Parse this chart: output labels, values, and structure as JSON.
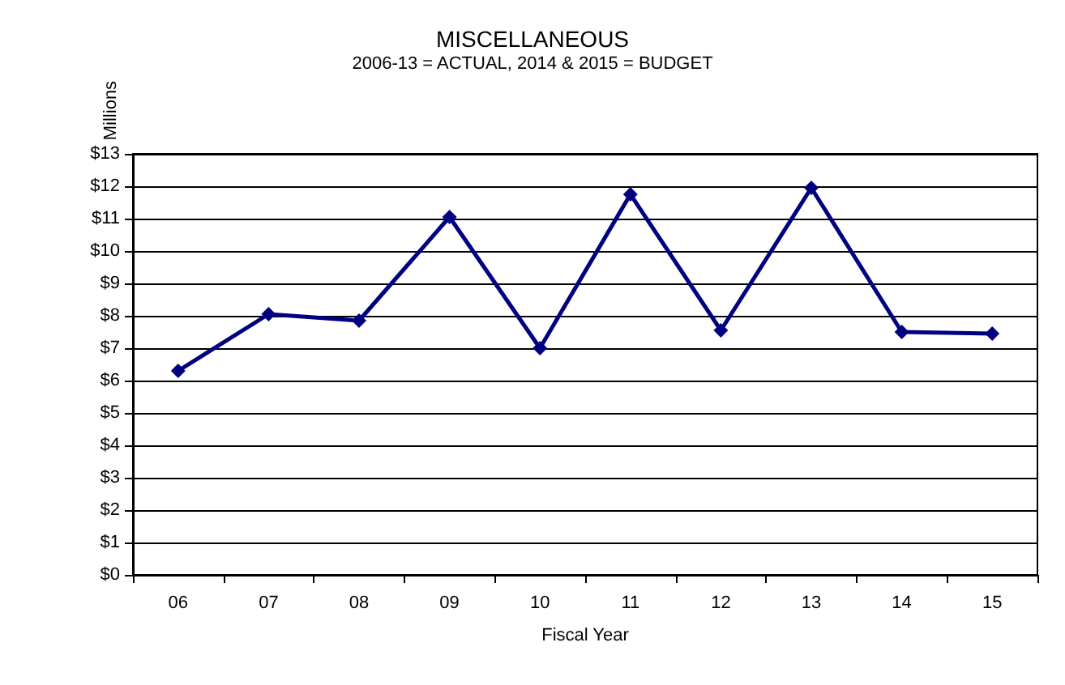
{
  "chart_data": {
    "type": "line",
    "title": "MISCELLANEOUS",
    "subtitle": "2006-13 = ACTUAL, 2014 & 2015 = BUDGET",
    "xlabel": "Fiscal Year",
    "ylabel": "Millions",
    "categories": [
      "06",
      "07",
      "08",
      "09",
      "10",
      "11",
      "12",
      "13",
      "14",
      "15"
    ],
    "series": [
      {
        "color": "#000080",
        "values": [
          6.3,
          8.05,
          7.85,
          11.05,
          7.0,
          11.75,
          7.55,
          11.95,
          7.5,
          7.45
        ]
      }
    ],
    "ylim": [
      0,
      13
    ],
    "yticks": [
      {
        "value": 0,
        "label": "$0"
      },
      {
        "value": 1,
        "label": "$1"
      },
      {
        "value": 2,
        "label": "$2"
      },
      {
        "value": 3,
        "label": "$3"
      },
      {
        "value": 4,
        "label": "$4"
      },
      {
        "value": 5,
        "label": "$5"
      },
      {
        "value": 6,
        "label": "$6"
      },
      {
        "value": 7,
        "label": "$7"
      },
      {
        "value": 8,
        "label": "$8"
      },
      {
        "value": 9,
        "label": "$9"
      },
      {
        "value": 10,
        "label": "$10"
      },
      {
        "value": 11,
        "label": "$11"
      },
      {
        "value": 12,
        "label": "$12"
      },
      {
        "value": 13,
        "label": "$13"
      }
    ],
    "grid": "y",
    "marker": "diamond",
    "line_style": "solid"
  }
}
